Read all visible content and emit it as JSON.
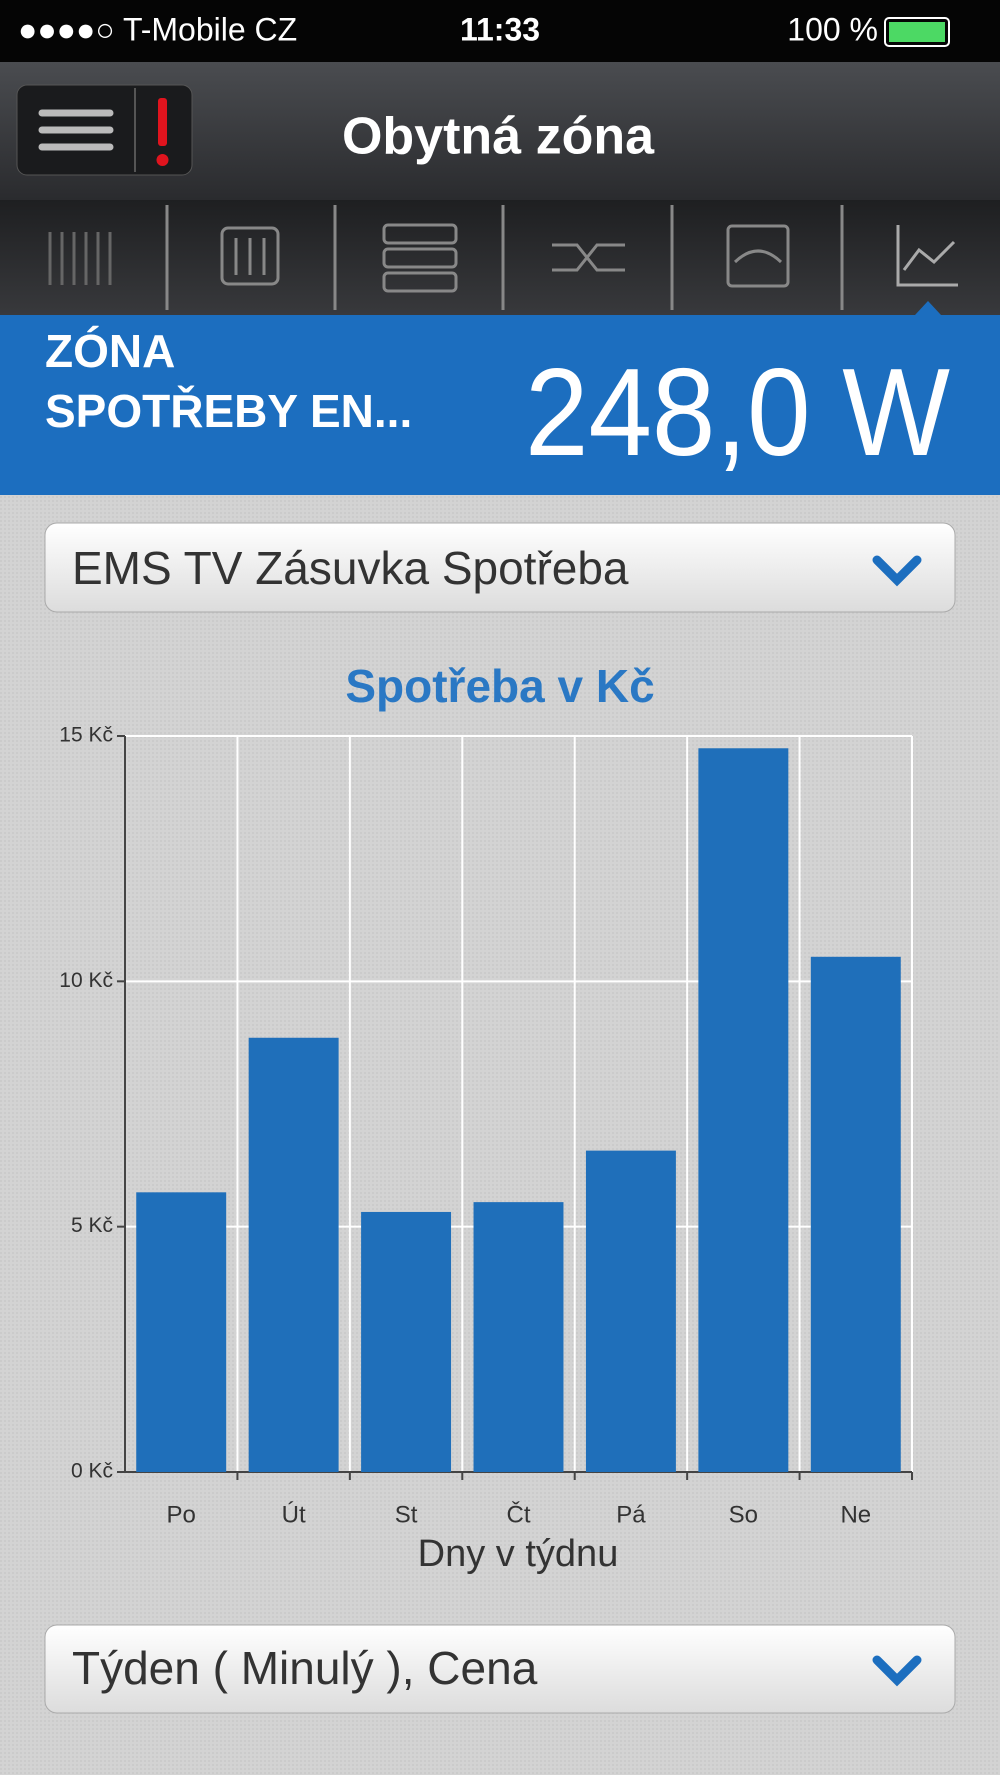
{
  "status_bar": {
    "carrier": "●●●●○ T-Mobile CZ",
    "time": "11:33",
    "battery": "100 %"
  },
  "header": {
    "title": "Obytná zóna"
  },
  "banner": {
    "title_lines": [
      "ZÓNA",
      "SPOTŘEBY EN..."
    ],
    "value": "248,0 W"
  },
  "device_select": {
    "label": "EMS TV Zásuvka Spotřeba"
  },
  "period_select": {
    "label": "Týden ( Minulý ), Cena"
  },
  "chart_data": {
    "type": "bar",
    "title": "Spotřeba v Kč",
    "x_label": "Dny v týdnu",
    "categories": [
      "Po",
      "Út",
      "St",
      "Čt",
      "Pá",
      "So",
      "Ne"
    ],
    "values": [
      5.7,
      8.85,
      5.3,
      5.5,
      6.55,
      14.75,
      10.5
    ],
    "color": "#1f6fba",
    "ylim": [
      0,
      15
    ],
    "yticks": [
      {
        "value": 0,
        "label": "0 Kč"
      },
      {
        "value": 5,
        "label": "5 Kč"
      },
      {
        "value": 10,
        "label": "10 Kč"
      },
      {
        "value": 15,
        "label": "15 Kč"
      }
    ],
    "grid": true
  }
}
